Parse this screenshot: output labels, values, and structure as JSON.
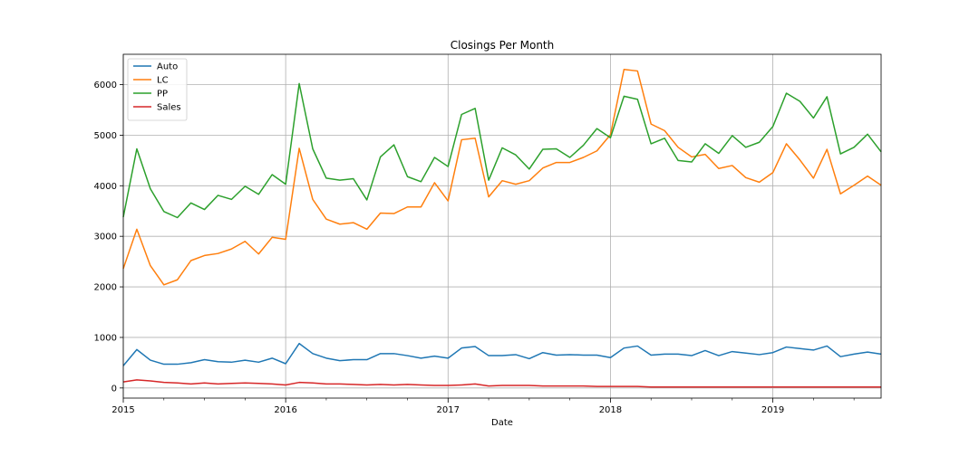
{
  "chart_data": {
    "type": "line",
    "title": "Closings Per Month",
    "xlabel": "Date",
    "ylabel": "",
    "x_start": "2015-01",
    "x_end": "2019-09",
    "xlim": [
      "2015-01",
      "2019-09"
    ],
    "ylim": [
      -200,
      6600
    ],
    "x_ticks": [
      "2015",
      "2016",
      "2017",
      "2018",
      "2019"
    ],
    "y_ticks": [
      0,
      1000,
      2000,
      3000,
      4000,
      5000,
      6000
    ],
    "grid": true,
    "legend_position": "top-left",
    "series": [
      {
        "name": "Auto",
        "color": "#1f77b4",
        "values": [
          440,
          760,
          550,
          470,
          470,
          500,
          560,
          520,
          510,
          550,
          510,
          590,
          480,
          880,
          680,
          590,
          540,
          560,
          560,
          680,
          680,
          640,
          590,
          630,
          590,
          790,
          820,
          640,
          640,
          660,
          580,
          700,
          650,
          660,
          650,
          650,
          600,
          790,
          830,
          650,
          670,
          670,
          640,
          740,
          640,
          720,
          690,
          660,
          700,
          810,
          780,
          750,
          830,
          620,
          670,
          710,
          670
        ]
      },
      {
        "name": "LC",
        "color": "#ff7f0e",
        "values": [
          2360,
          3140,
          2420,
          2040,
          2140,
          2520,
          2620,
          2660,
          2750,
          2900,
          2650,
          2980,
          2940,
          4740,
          3730,
          3340,
          3240,
          3270,
          3140,
          3460,
          3450,
          3580,
          3580,
          4060,
          3700,
          4910,
          4940,
          3780,
          4100,
          4030,
          4100,
          4350,
          4460,
          4460,
          4560,
          4690,
          5010,
          6300,
          6270,
          5220,
          5090,
          4760,
          4570,
          4620,
          4340,
          4400,
          4160,
          4070,
          4260,
          4830,
          4510,
          4150,
          4720,
          3840,
          4010,
          4190,
          4010
        ]
      },
      {
        "name": "PP",
        "color": "#2ca02c",
        "values": [
          3380,
          4730,
          3940,
          3490,
          3370,
          3660,
          3530,
          3810,
          3730,
          3990,
          3830,
          4220,
          4030,
          6020,
          4730,
          4150,
          4110,
          4140,
          3720,
          4570,
          4810,
          4180,
          4080,
          4560,
          4380,
          5410,
          5530,
          4110,
          4750,
          4610,
          4330,
          4720,
          4730,
          4560,
          4800,
          5130,
          4950,
          5770,
          5710,
          4830,
          4940,
          4500,
          4470,
          4830,
          4640,
          4990,
          4760,
          4860,
          5170,
          5830,
          5670,
          5340,
          5760,
          4630,
          4760,
          5020,
          4670
        ]
      },
      {
        "name": "Sales",
        "color": "#d62728",
        "values": [
          120,
          160,
          140,
          110,
          100,
          80,
          100,
          80,
          90,
          100,
          90,
          80,
          60,
          110,
          100,
          80,
          80,
          70,
          60,
          70,
          60,
          70,
          60,
          50,
          50,
          60,
          80,
          40,
          50,
          50,
          50,
          40,
          40,
          40,
          40,
          30,
          30,
          30,
          30,
          20,
          20,
          20,
          20,
          20,
          20,
          20,
          20,
          20,
          20,
          20,
          20,
          20,
          20,
          20,
          20,
          20,
          20
        ]
      }
    ]
  }
}
